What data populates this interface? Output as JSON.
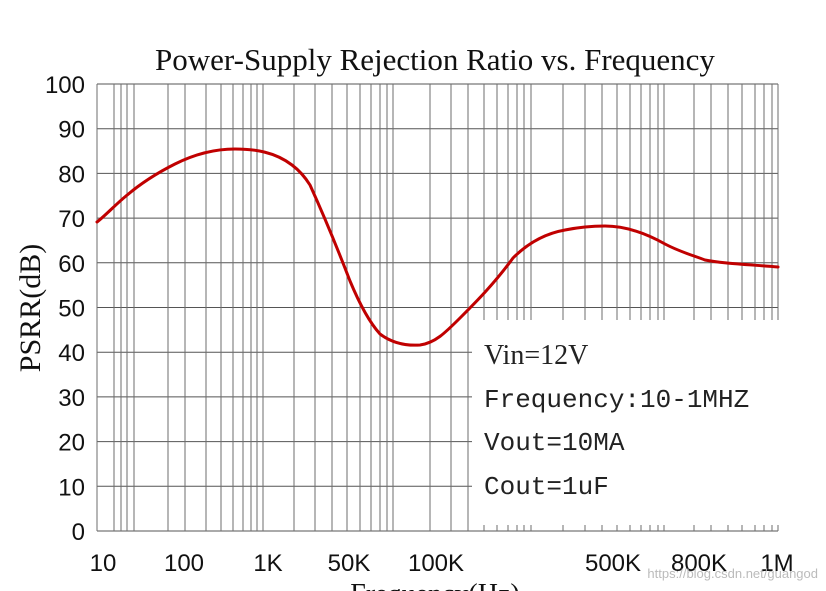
{
  "chart_data": {
    "type": "line",
    "title": "Power-Supply Rejection Ratio vs. Frequency",
    "ylabel": "PSRR(dB)",
    "xlabel": "Frequency(Hz)",
    "ylim": [
      0,
      100
    ],
    "yticks": [
      "0",
      "10",
      "20",
      "30",
      "40",
      "50",
      "60",
      "70",
      "80",
      "90",
      "100"
    ],
    "xticks": [
      "10",
      "100",
      "1K",
      "50K",
      "100K",
      "500K",
      "800K",
      "1M"
    ],
    "grid": true,
    "series": [
      {
        "color": "#c00000",
        "points": [
          {
            "x": "10",
            "y": 69
          },
          {
            "x": "100",
            "y": 82
          },
          {
            "x": "1K",
            "y": 84
          },
          {
            "x": "50K",
            "y": 55
          },
          {
            "x": "100K",
            "y": 42
          },
          {
            "x": "500K",
            "y": 68
          },
          {
            "x": "800K",
            "y": 60
          },
          {
            "x": "1M",
            "y": 58.5
          }
        ]
      }
    ],
    "annotations": {
      "line1": "Vin=12V",
      "line2": "Frequency:10-1MHZ",
      "line3": "Vout=10MA",
      "line4": "Cout=1uF"
    },
    "watermark": "https://blog.csdn.net/guangod"
  }
}
